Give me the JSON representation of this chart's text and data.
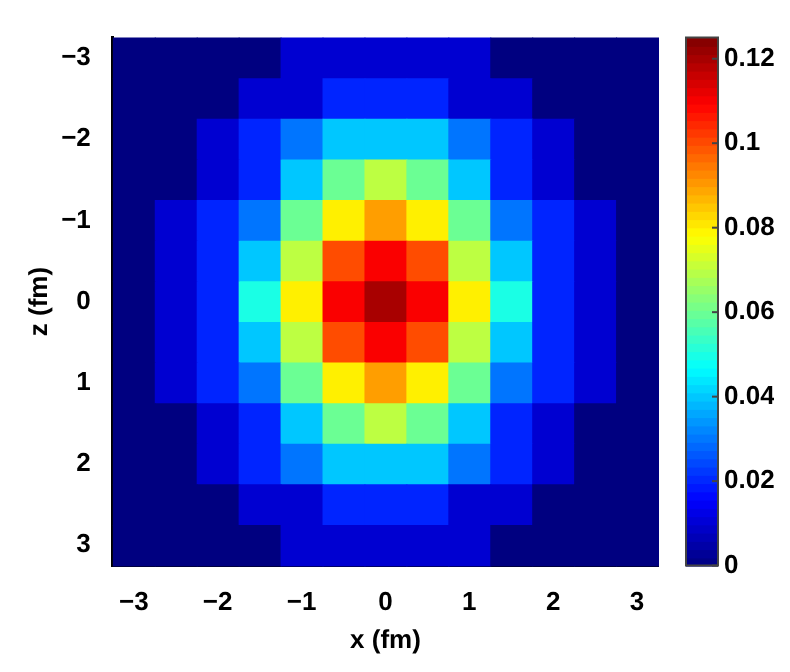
{
  "chart_data": {
    "type": "heatmap",
    "xlabel": "x (fm)",
    "ylabel": "z (fm)",
    "categories": [
      "−3",
      null,
      "−2",
      null,
      "−1",
      null,
      "0",
      null,
      "1",
      null,
      "2",
      null,
      "3"
    ],
    "y_categories": [
      "−3",
      null,
      "−2",
      null,
      "−1",
      null,
      "0",
      null,
      "1",
      null,
      "2",
      null,
      "3"
    ],
    "cells": [
      [
        0.0,
        0.0,
        0.0,
        0.0,
        0.01,
        0.01,
        0.01,
        0.01,
        0.01,
        0.0,
        0.0,
        0.0,
        0.0
      ],
      [
        0.0,
        0.0,
        0.0,
        0.01,
        0.01,
        0.02,
        0.02,
        0.02,
        0.01,
        0.01,
        0.0,
        0.0,
        0.0
      ],
      [
        0.0,
        0.0,
        0.01,
        0.02,
        0.03,
        0.04,
        0.04,
        0.04,
        0.03,
        0.02,
        0.01,
        0.0,
        0.0
      ],
      [
        0.0,
        0.0,
        0.01,
        0.02,
        0.04,
        0.06,
        0.07,
        0.06,
        0.04,
        0.02,
        0.01,
        0.0,
        0.0
      ],
      [
        0.0,
        0.01,
        0.02,
        0.03,
        0.06,
        0.08,
        0.09,
        0.08,
        0.06,
        0.03,
        0.02,
        0.01,
        0.0
      ],
      [
        0.0,
        0.01,
        0.02,
        0.04,
        0.07,
        0.1,
        0.11,
        0.1,
        0.07,
        0.04,
        0.02,
        0.01,
        0.0
      ],
      [
        0.0,
        0.01,
        0.02,
        0.05,
        0.08,
        0.11,
        0.12,
        0.11,
        0.08,
        0.05,
        0.02,
        0.01,
        0.0
      ],
      [
        0.0,
        0.01,
        0.02,
        0.04,
        0.07,
        0.1,
        0.11,
        0.1,
        0.07,
        0.04,
        0.02,
        0.01,
        0.0
      ],
      [
        0.0,
        0.01,
        0.02,
        0.03,
        0.06,
        0.08,
        0.09,
        0.08,
        0.06,
        0.03,
        0.02,
        0.01,
        0.0
      ],
      [
        0.0,
        0.0,
        0.01,
        0.02,
        0.04,
        0.06,
        0.07,
        0.06,
        0.04,
        0.02,
        0.01,
        0.0,
        0.0
      ],
      [
        0.0,
        0.0,
        0.01,
        0.02,
        0.03,
        0.04,
        0.04,
        0.04,
        0.03,
        0.02,
        0.01,
        0.0,
        0.0
      ],
      [
        0.0,
        0.0,
        0.0,
        0.01,
        0.01,
        0.02,
        0.02,
        0.02,
        0.01,
        0.01,
        0.0,
        0.0,
        0.0
      ],
      [
        0.0,
        0.0,
        0.0,
        0.0,
        0.01,
        0.01,
        0.01,
        0.01,
        0.01,
        0.0,
        0.0,
        0.0,
        0.0
      ]
    ],
    "clim": [
      0,
      0.125
    ],
    "cticks": [
      0,
      0.02,
      0.04,
      0.06,
      0.08,
      0.1,
      0.12
    ]
  }
}
